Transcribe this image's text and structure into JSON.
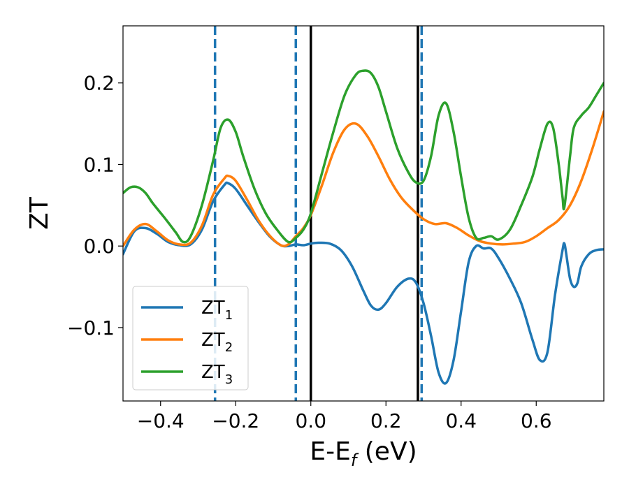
{
  "chart_data": {
    "type": "line",
    "xlabel": "E-E_f (eV)",
    "xlabel_main": "E-E",
    "xlabel_sub": "f",
    "xlabel_unit": " (eV)",
    "ylabel": "ZT",
    "xlim": [
      -0.5,
      0.78
    ],
    "ylim": [
      -0.19,
      0.27
    ],
    "xticks": [
      -0.4,
      -0.2,
      0.0,
      0.2,
      0.4,
      0.6
    ],
    "xtick_labels": [
      "−0.4",
      "−0.2",
      "0.0",
      "0.2",
      "0.4",
      "0.6"
    ],
    "yticks": [
      -0.1,
      0.0,
      0.1,
      0.2
    ],
    "ytick_labels": [
      "−0.1",
      "0.0",
      "0.1",
      "0.2"
    ],
    "grid": false,
    "legend_position": "bottom-left",
    "vlines": [
      {
        "x": -0.255,
        "style": "dashed",
        "color": "#1f77b4"
      },
      {
        "x": -0.04,
        "style": "dashed",
        "color": "#1f77b4"
      },
      {
        "x": 0.295,
        "style": "dashed",
        "color": "#1f77b4"
      },
      {
        "x": 0.0,
        "style": "solid",
        "color": "#000000"
      },
      {
        "x": 0.285,
        "style": "solid",
        "color": "#000000"
      }
    ],
    "series": [
      {
        "name": "ZT₁",
        "name_main": "ZT",
        "name_sub": "1",
        "color": "#1f77b4",
        "x": [
          -0.5,
          -0.47,
          -0.44,
          -0.41,
          -0.38,
          -0.35,
          -0.32,
          -0.29,
          -0.26,
          -0.23,
          -0.22,
          -0.2,
          -0.17,
          -0.14,
          -0.11,
          -0.08,
          -0.06,
          -0.04,
          -0.02,
          0.0,
          0.02,
          0.05,
          0.08,
          0.11,
          0.14,
          0.16,
          0.18,
          0.2,
          0.23,
          0.26,
          0.28,
          0.3,
          0.32,
          0.34,
          0.36,
          0.38,
          0.4,
          0.42,
          0.44,
          0.46,
          0.48,
          0.5,
          0.53,
          0.56,
          0.59,
          0.61,
          0.63,
          0.65,
          0.67,
          0.675,
          0.68,
          0.69,
          0.7,
          0.71,
          0.72,
          0.74,
          0.76,
          0.78
        ],
        "y": [
          -0.01,
          0.018,
          0.022,
          0.015,
          0.005,
          0.001,
          0.002,
          0.02,
          0.055,
          0.075,
          0.077,
          0.07,
          0.05,
          0.03,
          0.012,
          0.001,
          0.0,
          0.002,
          0.001,
          0.003,
          0.004,
          0.003,
          -0.005,
          -0.025,
          -0.055,
          -0.073,
          -0.078,
          -0.07,
          -0.05,
          -0.04,
          -0.045,
          -0.07,
          -0.11,
          -0.155,
          -0.168,
          -0.14,
          -0.08,
          -0.02,
          0.0,
          -0.003,
          -0.003,
          -0.015,
          -0.04,
          -0.07,
          -0.115,
          -0.14,
          -0.13,
          -0.06,
          -0.005,
          0.003,
          -0.01,
          -0.04,
          -0.05,
          -0.045,
          -0.025,
          -0.01,
          -0.005,
          -0.004
        ]
      },
      {
        "name": "ZT₂",
        "name_main": "ZT",
        "name_sub": "2",
        "color": "#ff7f0e",
        "x": [
          -0.5,
          -0.47,
          -0.44,
          -0.41,
          -0.38,
          -0.35,
          -0.32,
          -0.29,
          -0.26,
          -0.23,
          -0.22,
          -0.2,
          -0.17,
          -0.14,
          -0.11,
          -0.08,
          -0.06,
          -0.04,
          -0.02,
          0.0,
          0.03,
          0.06,
          0.09,
          0.12,
          0.15,
          0.18,
          0.21,
          0.24,
          0.27,
          0.3,
          0.33,
          0.36,
          0.39,
          0.42,
          0.45,
          0.48,
          0.51,
          0.54,
          0.57,
          0.6,
          0.63,
          0.66,
          0.69,
          0.72,
          0.75,
          0.78
        ],
        "y": [
          0.0,
          0.02,
          0.027,
          0.018,
          0.007,
          0.002,
          0.004,
          0.025,
          0.063,
          0.083,
          0.086,
          0.08,
          0.057,
          0.032,
          0.013,
          0.001,
          0.002,
          0.012,
          0.022,
          0.038,
          0.075,
          0.115,
          0.143,
          0.15,
          0.135,
          0.11,
          0.082,
          0.06,
          0.045,
          0.033,
          0.027,
          0.028,
          0.022,
          0.013,
          0.006,
          0.003,
          0.002,
          0.003,
          0.005,
          0.012,
          0.022,
          0.032,
          0.05,
          0.08,
          0.12,
          0.165
        ]
      },
      {
        "name": "ZT₃",
        "name_main": "ZT",
        "name_sub": "3",
        "color": "#2ca02c",
        "x": [
          -0.5,
          -0.48,
          -0.46,
          -0.44,
          -0.42,
          -0.39,
          -0.36,
          -0.34,
          -0.32,
          -0.29,
          -0.26,
          -0.24,
          -0.22,
          -0.2,
          -0.18,
          -0.15,
          -0.12,
          -0.09,
          -0.06,
          -0.04,
          -0.02,
          0.0,
          0.03,
          0.06,
          0.09,
          0.12,
          0.14,
          0.16,
          0.18,
          0.2,
          0.23,
          0.26,
          0.28,
          0.3,
          0.32,
          0.34,
          0.36,
          0.38,
          0.4,
          0.42,
          0.44,
          0.46,
          0.48,
          0.5,
          0.53,
          0.56,
          0.59,
          0.61,
          0.63,
          0.645,
          0.66,
          0.67,
          0.675,
          0.69,
          0.7,
          0.72,
          0.74,
          0.76,
          0.78
        ],
        "y": [
          0.065,
          0.072,
          0.072,
          0.065,
          0.052,
          0.035,
          0.017,
          0.005,
          0.012,
          0.05,
          0.105,
          0.145,
          0.155,
          0.14,
          0.11,
          0.07,
          0.04,
          0.02,
          0.005,
          0.01,
          0.02,
          0.04,
          0.09,
          0.14,
          0.185,
          0.21,
          0.215,
          0.212,
          0.195,
          0.165,
          0.12,
          0.09,
          0.078,
          0.08,
          0.11,
          0.16,
          0.175,
          0.14,
          0.085,
          0.035,
          0.01,
          0.01,
          0.012,
          0.008,
          0.02,
          0.05,
          0.085,
          0.12,
          0.15,
          0.145,
          0.1,
          0.06,
          0.048,
          0.11,
          0.145,
          0.16,
          0.17,
          0.185,
          0.2
        ]
      }
    ]
  }
}
